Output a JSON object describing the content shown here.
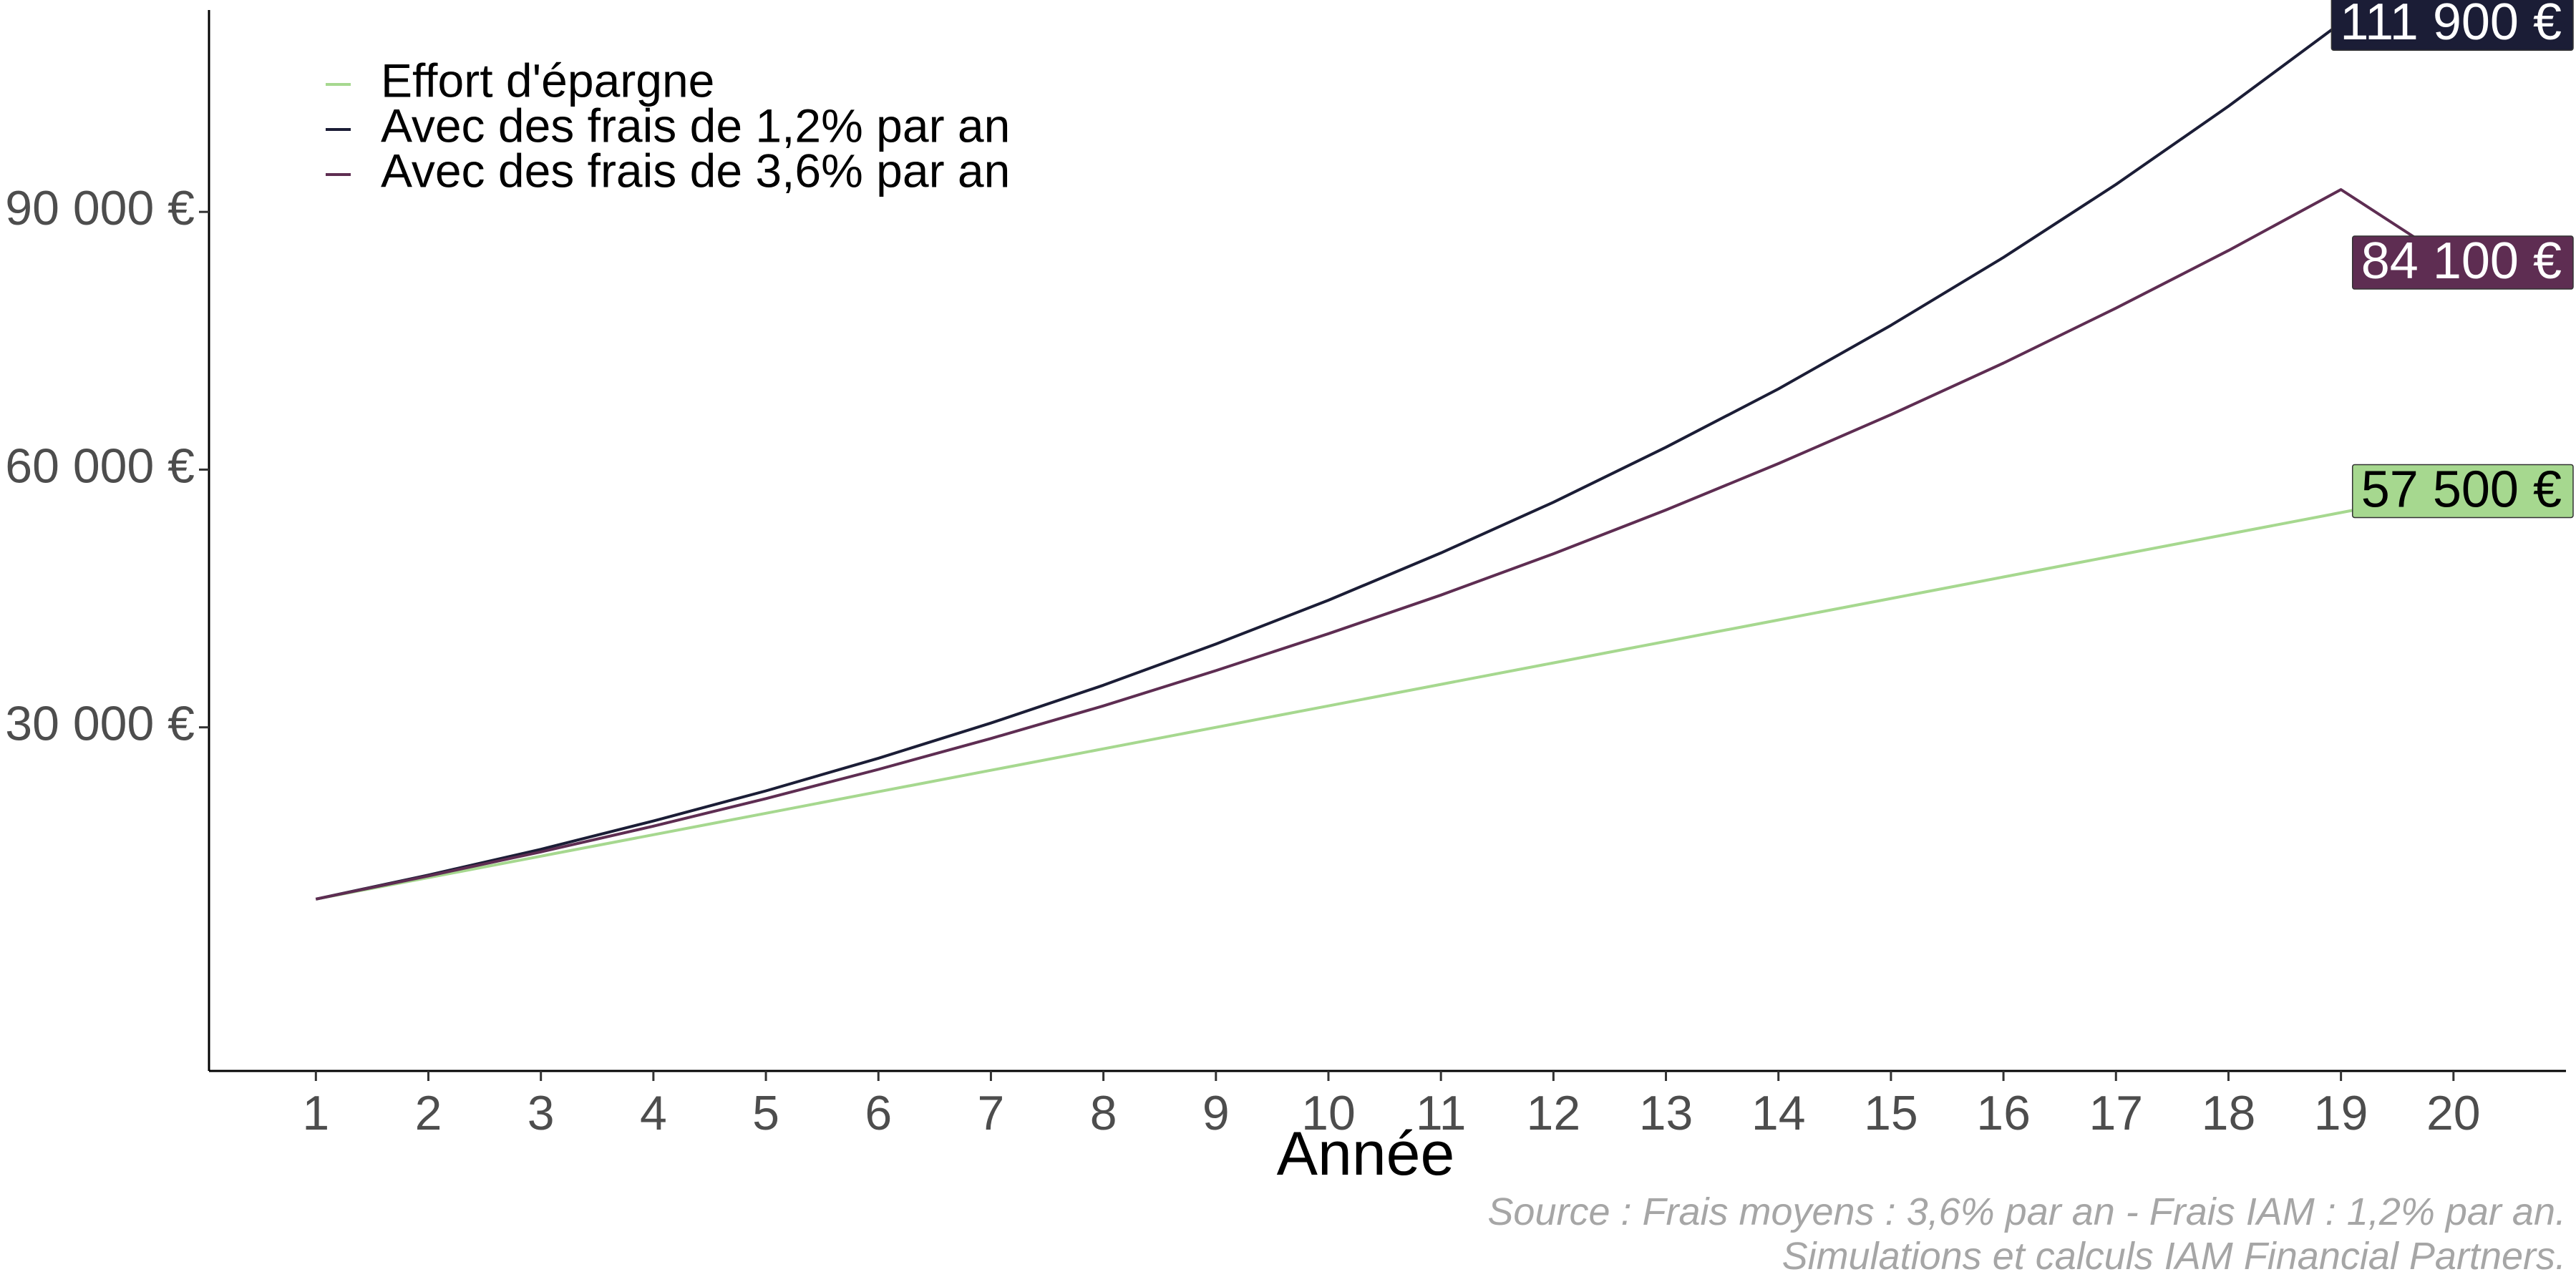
{
  "chart_data": {
    "type": "line",
    "title": "",
    "xlabel": "Année",
    "ylabel": "",
    "x": [
      1,
      2,
      3,
      4,
      5,
      6,
      7,
      8,
      9,
      10,
      11,
      12,
      13,
      14,
      15,
      16,
      17,
      18,
      19,
      20
    ],
    "xlim": [
      0.05,
      21
    ],
    "ylim": [
      -10000,
      113500
    ],
    "y_ticks": [
      30000,
      60000,
      90000
    ],
    "y_tick_labels": [
      "30 000 €",
      "60 000 €",
      "90 000 €"
    ],
    "legend_position": "top-left",
    "grid": false,
    "series": [
      {
        "name": "Effort d'épargne",
        "color": "#a6d88f",
        "values": [
          10000,
          12500,
          15000,
          17500,
          20000,
          22500,
          25000,
          27500,
          30000,
          32500,
          35000,
          37500,
          40000,
          42500,
          45000,
          47500,
          50000,
          52500,
          55000,
          57500
        ],
        "end_label": "57 500 €",
        "label_fill": "#a6d88f",
        "label_text_color": "#000000"
      },
      {
        "name": "Avec des frais de 1,2% par an",
        "color": "#1b1d36",
        "values": [
          10000,
          12800,
          15800,
          19100,
          22600,
          26400,
          30500,
          34900,
          39700,
          44800,
          50300,
          56200,
          62600,
          69400,
          76800,
          84700,
          93200,
          102300,
          112000,
          111900
        ],
        "end_label": "111 900 €",
        "label_fill": "#1b1d36",
        "label_text_color": "#ffffff"
      },
      {
        "name": "Avec des frais de 3,6% par an",
        "color": "#5e2d52",
        "values": [
          10000,
          12700,
          15500,
          18500,
          21700,
          25100,
          28700,
          32500,
          36600,
          40900,
          45400,
          50200,
          55300,
          60700,
          66400,
          72400,
          78800,
          85500,
          92600,
          84100
        ],
        "end_label": "84 100 €",
        "label_fill": "#5e2d52",
        "label_text_color": "#ffffff"
      }
    ]
  },
  "caption": {
    "line1": "Source : Frais moyens : 3,6% par an - Frais IAM : 1,2% par an.",
    "line2": "Simulations et calculs IAM Financial Partners."
  }
}
